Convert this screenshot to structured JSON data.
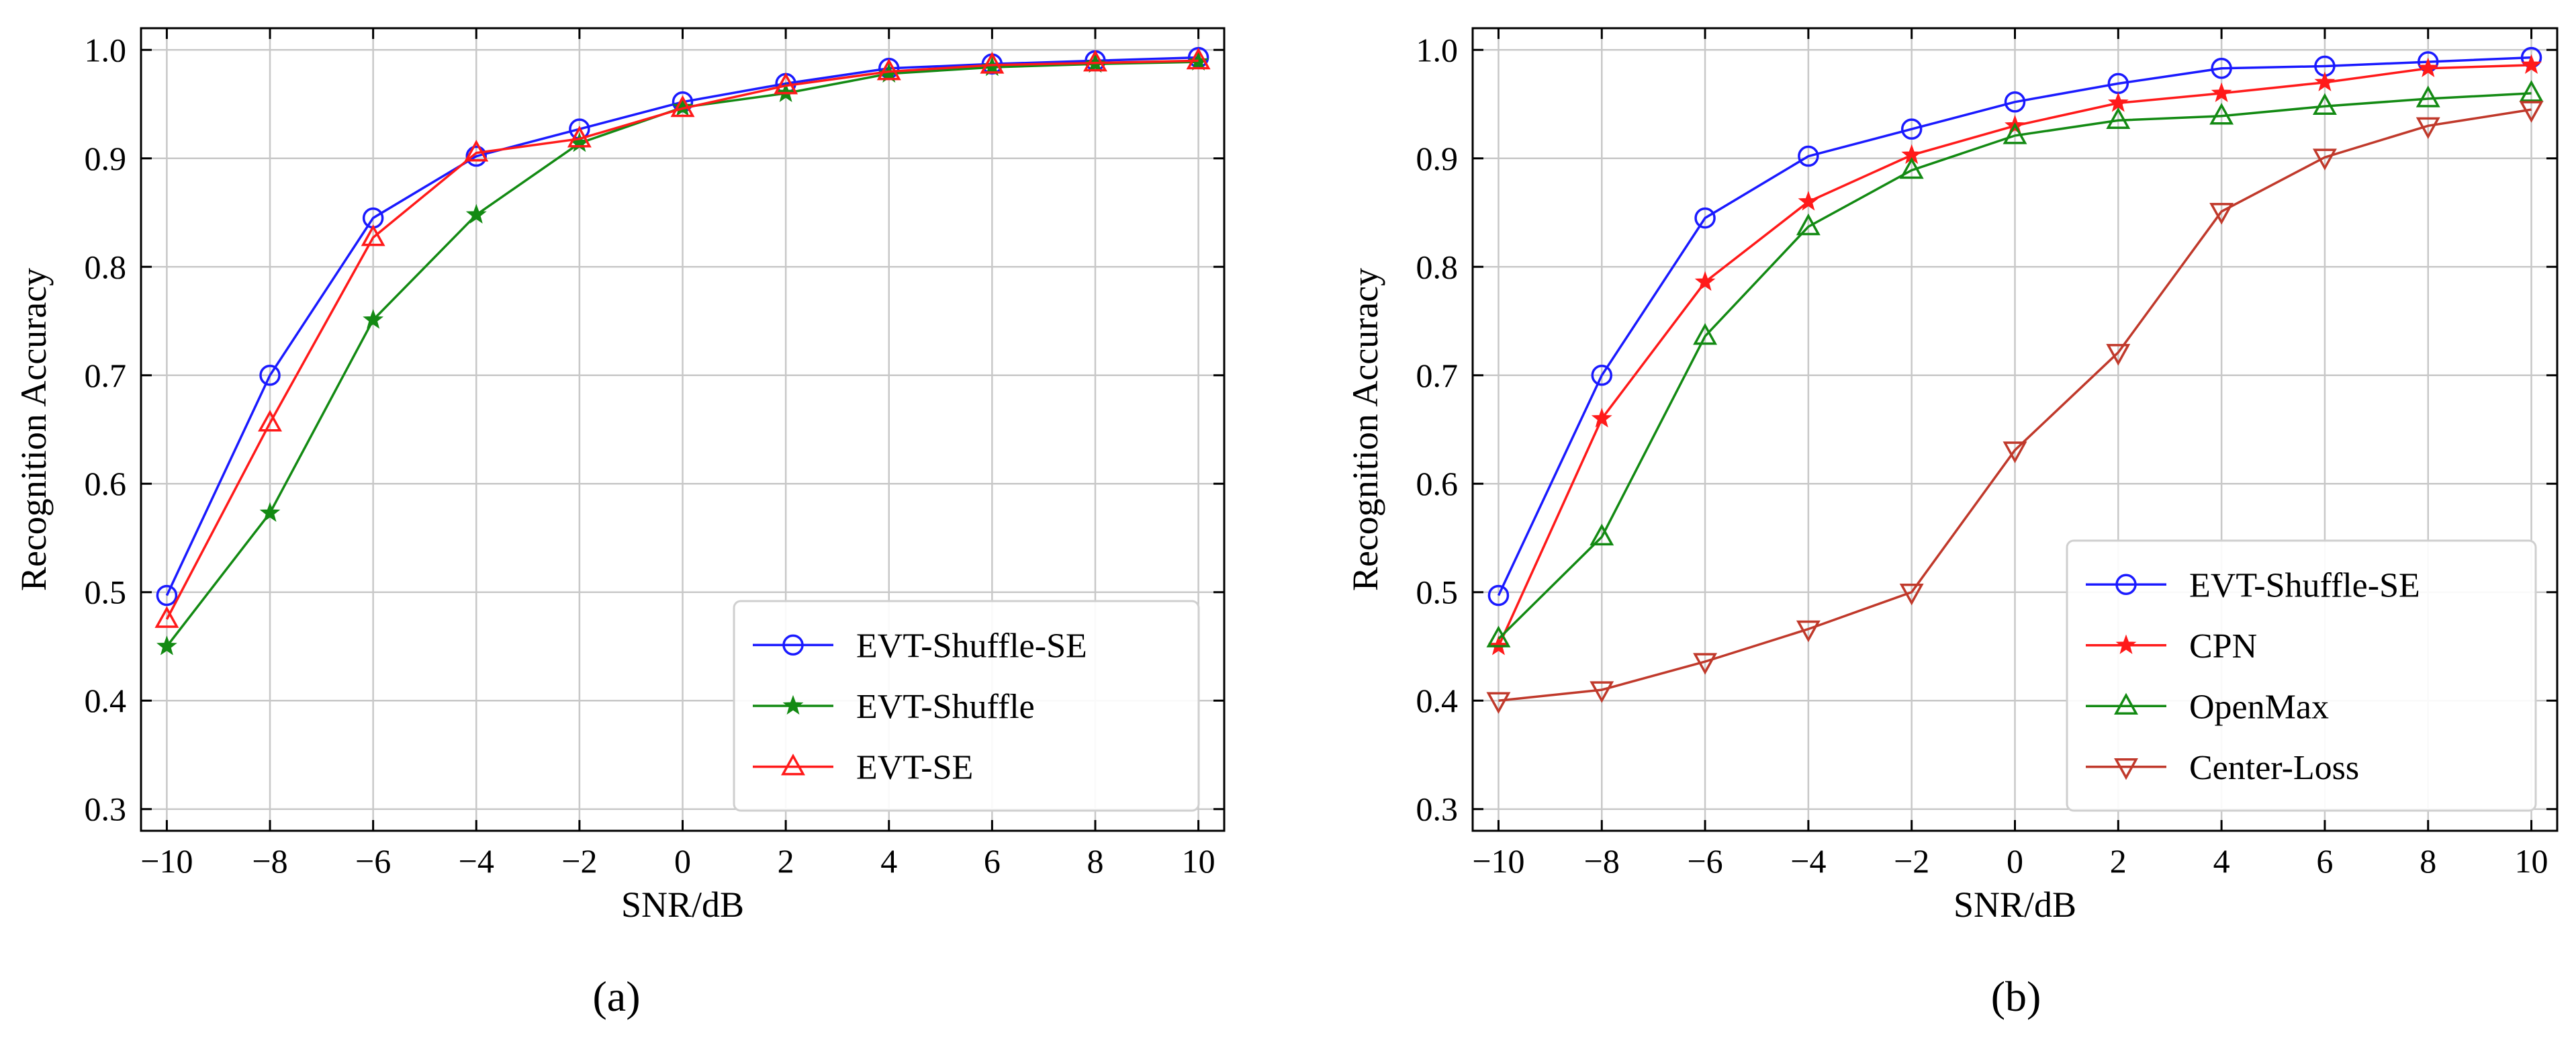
{
  "chart_data": [
    {
      "type": "line",
      "caption": "(a)",
      "xlabel": "SNR/dB",
      "ylabel": "Recognition Accuracy",
      "x": [
        -10,
        -8,
        -6,
        -4,
        -2,
        0,
        2,
        4,
        6,
        8,
        10
      ],
      "x_tick_labels": [
        "−10",
        "−8",
        "−6",
        "−4",
        "−2",
        "0",
        "2",
        "4",
        "6",
        "8",
        "10"
      ],
      "xlim": [
        -10.5,
        10.5
      ],
      "ylim": [
        0.28,
        1.02
      ],
      "y_ticks": [
        0.3,
        0.4,
        0.5,
        0.6,
        0.7,
        0.8,
        0.9,
        1.0
      ],
      "y_tick_labels": [
        "0.3",
        "0.4",
        "0.5",
        "0.6",
        "0.7",
        "0.8",
        "0.9",
        "1.0"
      ],
      "grid": true,
      "legend_position": "lower-right",
      "series": [
        {
          "name": "EVT-Shuffle-SE",
          "color": "#1a1aff",
          "marker": "circle",
          "values": [
            0.497,
            0.7,
            0.845,
            0.902,
            0.927,
            0.952,
            0.969,
            0.983,
            0.987,
            0.99,
            0.993
          ]
        },
        {
          "name": "EVT-Shuffle",
          "color": "#138a13",
          "marker": "star",
          "values": [
            0.45,
            0.573,
            0.751,
            0.848,
            0.914,
            0.947,
            0.96,
            0.978,
            0.984,
            0.987,
            0.989
          ]
        },
        {
          "name": "EVT-SE",
          "color": "#ff1a1a",
          "marker": "triangle-up",
          "values": [
            0.475,
            0.656,
            0.827,
            0.905,
            0.918,
            0.946,
            0.967,
            0.98,
            0.986,
            0.988,
            0.99
          ]
        }
      ]
    },
    {
      "type": "line",
      "caption": "(b)",
      "xlabel": "SNR/dB",
      "ylabel": "Recognition Accuracy",
      "x": [
        -10,
        -8,
        -6,
        -4,
        -2,
        0,
        2,
        4,
        6,
        8,
        10
      ],
      "x_tick_labels": [
        "−10",
        "−8",
        "−6",
        "−4",
        "−2",
        "0",
        "2",
        "4",
        "6",
        "8",
        "10"
      ],
      "xlim": [
        -10.5,
        10.5
      ],
      "ylim": [
        0.28,
        1.02
      ],
      "y_ticks": [
        0.3,
        0.4,
        0.5,
        0.6,
        0.7,
        0.8,
        0.9,
        1.0
      ],
      "y_tick_labels": [
        "0.3",
        "0.4",
        "0.5",
        "0.6",
        "0.7",
        "0.8",
        "0.9",
        "1.0"
      ],
      "grid": true,
      "legend_position": "lower-right",
      "series": [
        {
          "name": "EVT-Shuffle-SE",
          "color": "#1a1aff",
          "marker": "circle",
          "values": [
            0.497,
            0.7,
            0.845,
            0.902,
            0.927,
            0.952,
            0.969,
            0.983,
            0.985,
            0.989,
            0.993
          ]
        },
        {
          "name": "CPN",
          "color": "#ff1a1a",
          "marker": "star",
          "values": [
            0.45,
            0.66,
            0.786,
            0.86,
            0.903,
            0.93,
            0.951,
            0.96,
            0.97,
            0.983,
            0.986
          ]
        },
        {
          "name": "OpenMax",
          "color": "#138a13",
          "marker": "triangle-up",
          "values": [
            0.457,
            0.551,
            0.736,
            0.837,
            0.889,
            0.921,
            0.935,
            0.939,
            0.948,
            0.955,
            0.96
          ]
        },
        {
          "name": "Center-Loss",
          "color": "#c0392b",
          "marker": "triangle-down",
          "values": [
            0.4,
            0.41,
            0.436,
            0.466,
            0.5,
            0.631,
            0.721,
            0.851,
            0.901,
            0.93,
            0.945
          ]
        }
      ]
    }
  ]
}
